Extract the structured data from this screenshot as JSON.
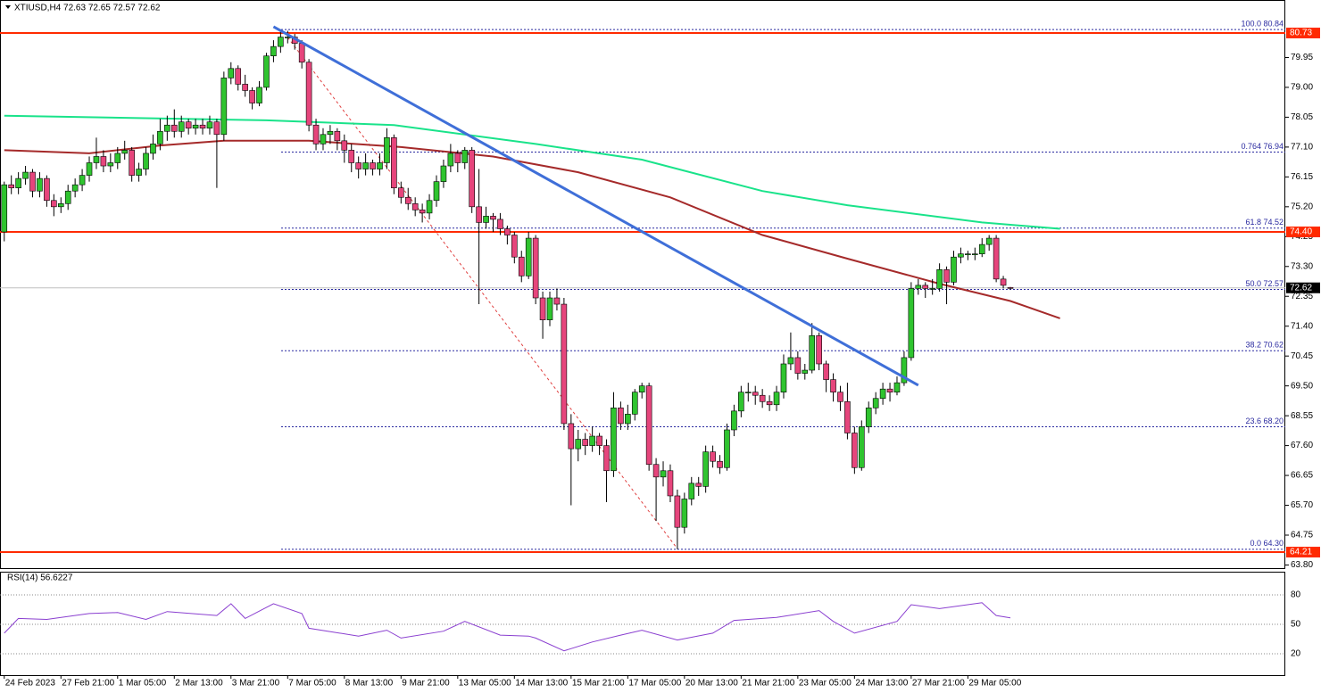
{
  "chart_data": {
    "type": "candlestick",
    "title": "XTIUSD,H4  72.63 72.65 72.57 72.62",
    "up_color": "#2fc42f",
    "down_color": "#e6457c",
    "ohlc": [
      [
        74.4,
        76.0,
        74.1,
        75.9
      ],
      [
        75.9,
        76.2,
        75.6,
        75.8
      ],
      [
        75.8,
        76.3,
        75.6,
        76.1
      ],
      [
        76.1,
        76.5,
        75.9,
        76.3
      ],
      [
        76.3,
        76.4,
        75.5,
        75.7
      ],
      [
        75.7,
        76.3,
        75.5,
        76.1
      ],
      [
        76.1,
        76.2,
        75.2,
        75.4
      ],
      [
        75.4,
        75.6,
        74.9,
        75.2
      ],
      [
        75.2,
        75.5,
        75.0,
        75.3
      ],
      [
        75.3,
        75.9,
        75.1,
        75.7
      ],
      [
        75.7,
        76.1,
        75.5,
        75.9
      ],
      [
        75.9,
        76.4,
        75.7,
        76.2
      ],
      [
        76.2,
        76.8,
        76.0,
        76.6
      ],
      [
        76.6,
        77.4,
        76.4,
        76.8
      ],
      [
        76.8,
        77.0,
        76.3,
        76.5
      ],
      [
        76.5,
        76.9,
        76.3,
        76.6
      ],
      [
        76.6,
        77.1,
        76.4,
        76.9
      ],
      [
        76.9,
        77.3,
        76.7,
        77.0
      ],
      [
        77.0,
        77.1,
        76.0,
        76.2
      ],
      [
        76.2,
        76.6,
        76.0,
        76.4
      ],
      [
        76.4,
        77.1,
        76.2,
        76.9
      ],
      [
        76.9,
        77.5,
        76.7,
        77.2
      ],
      [
        77.2,
        78.0,
        77.0,
        77.6
      ],
      [
        77.6,
        78.1,
        77.3,
        77.8
      ],
      [
        77.8,
        78.3,
        77.4,
        77.6
      ],
      [
        77.6,
        78.1,
        77.4,
        77.9
      ],
      [
        77.9,
        78.0,
        77.5,
        77.7
      ],
      [
        77.7,
        78.0,
        77.5,
        77.8
      ],
      [
        77.8,
        78.0,
        77.5,
        77.7
      ],
      [
        77.7,
        78.1,
        77.5,
        77.9
      ],
      [
        77.9,
        78.0,
        75.8,
        77.5
      ],
      [
        77.5,
        79.5,
        77.3,
        79.3
      ],
      [
        79.3,
        79.8,
        79.1,
        79.6
      ],
      [
        79.6,
        79.7,
        78.9,
        79.1
      ],
      [
        79.1,
        79.4,
        78.7,
        78.9
      ],
      [
        78.9,
        79.0,
        78.3,
        78.5
      ],
      [
        78.5,
        79.2,
        78.4,
        79.0
      ],
      [
        79.0,
        80.1,
        78.9,
        80.0
      ],
      [
        80.0,
        80.5,
        79.8,
        80.3
      ],
      [
        80.3,
        80.8,
        80.1,
        80.6
      ],
      [
        80.6,
        80.8,
        80.4,
        80.6
      ],
      [
        80.6,
        80.7,
        80.2,
        80.4
      ],
      [
        80.4,
        80.5,
        79.6,
        79.8
      ],
      [
        79.8,
        79.9,
        77.6,
        77.8
      ],
      [
        77.8,
        78.0,
        77.0,
        77.2
      ],
      [
        77.2,
        77.7,
        77.0,
        77.5
      ],
      [
        77.5,
        77.8,
        77.2,
        77.6
      ],
      [
        77.6,
        77.7,
        77.0,
        77.3
      ],
      [
        77.3,
        77.5,
        76.6,
        77.0
      ],
      [
        77.0,
        77.2,
        76.3,
        76.6
      ],
      [
        76.6,
        76.8,
        76.1,
        76.4
      ],
      [
        76.4,
        76.9,
        76.2,
        76.6
      ],
      [
        76.6,
        76.7,
        76.2,
        76.4
      ],
      [
        76.4,
        76.9,
        76.2,
        76.6
      ],
      [
        76.6,
        77.7,
        76.4,
        77.4
      ],
      [
        77.4,
        77.5,
        75.6,
        75.8
      ],
      [
        75.8,
        76.0,
        75.3,
        75.5
      ],
      [
        75.5,
        75.8,
        75.1,
        75.3
      ],
      [
        75.3,
        75.5,
        74.9,
        75.1
      ],
      [
        75.1,
        75.3,
        74.7,
        75.0
      ],
      [
        75.0,
        75.6,
        74.8,
        75.4
      ],
      [
        75.4,
        76.2,
        75.2,
        76.0
      ],
      [
        76.0,
        76.7,
        75.8,
        76.5
      ],
      [
        76.5,
        77.2,
        76.3,
        76.9
      ],
      [
        76.9,
        77.0,
        76.3,
        76.6
      ],
      [
        76.6,
        77.1,
        76.4,
        77.0
      ],
      [
        77.0,
        77.1,
        75.0,
        75.2
      ],
      [
        75.2,
        76.4,
        72.1,
        74.7
      ],
      [
        74.7,
        75.2,
        74.5,
        74.9
      ],
      [
        74.9,
        75.0,
        74.4,
        74.8
      ],
      [
        74.8,
        75.0,
        74.3,
        74.5
      ],
      [
        74.5,
        74.6,
        74.0,
        74.3
      ],
      [
        74.3,
        74.4,
        73.4,
        73.6
      ],
      [
        73.6,
        73.8,
        72.8,
        73.0
      ],
      [
        73.0,
        74.4,
        72.9,
        74.2
      ],
      [
        74.2,
        74.3,
        72.1,
        72.3
      ],
      [
        72.3,
        72.5,
        71.0,
        71.6
      ],
      [
        71.6,
        72.5,
        71.4,
        72.3
      ],
      [
        72.3,
        72.6,
        71.9,
        72.1
      ],
      [
        72.1,
        72.3,
        68.1,
        68.3
      ],
      [
        68.3,
        68.6,
        65.7,
        67.5
      ],
      [
        67.5,
        68.1,
        67.1,
        67.8
      ],
      [
        67.8,
        68.0,
        67.3,
        67.6
      ],
      [
        67.6,
        68.2,
        67.4,
        67.9
      ],
      [
        67.9,
        68.0,
        67.3,
        67.6
      ],
      [
        67.6,
        67.8,
        65.8,
        66.8
      ],
      [
        66.8,
        69.3,
        66.6,
        68.8
      ],
      [
        68.8,
        69.0,
        68.1,
        68.3
      ],
      [
        68.3,
        68.9,
        68.1,
        68.6
      ],
      [
        68.6,
        69.4,
        68.4,
        69.3
      ],
      [
        69.3,
        69.6,
        69.1,
        69.5
      ],
      [
        69.5,
        69.6,
        66.8,
        67.0
      ],
      [
        67.0,
        67.2,
        65.2,
        66.6
      ],
      [
        66.6,
        67.1,
        66.3,
        66.8
      ],
      [
        66.8,
        67.0,
        65.8,
        66.0
      ],
      [
        66.0,
        66.2,
        64.3,
        65.0
      ],
      [
        65.0,
        66.1,
        64.8,
        65.9
      ],
      [
        65.9,
        66.6,
        65.7,
        66.4
      ],
      [
        66.4,
        66.6,
        66.0,
        66.3
      ],
      [
        66.3,
        67.6,
        66.1,
        67.4
      ],
      [
        67.4,
        67.6,
        66.9,
        67.1
      ],
      [
        67.1,
        67.3,
        66.7,
        66.9
      ],
      [
        66.9,
        68.3,
        66.8,
        68.1
      ],
      [
        68.1,
        68.9,
        67.9,
        68.7
      ],
      [
        68.7,
        69.5,
        68.5,
        69.3
      ],
      [
        69.3,
        69.6,
        69.0,
        69.3
      ],
      [
        69.3,
        69.5,
        68.9,
        69.2
      ],
      [
        69.2,
        69.4,
        68.8,
        69.0
      ],
      [
        69.0,
        69.2,
        68.7,
        68.9
      ],
      [
        68.9,
        69.5,
        68.7,
        69.3
      ],
      [
        69.3,
        70.5,
        69.1,
        70.2
      ],
      [
        70.2,
        71.2,
        70.0,
        70.4
      ],
      [
        70.4,
        70.6,
        69.7,
        69.9
      ],
      [
        69.9,
        70.2,
        69.7,
        70.0
      ],
      [
        70.0,
        71.5,
        69.9,
        71.1
      ],
      [
        71.1,
        71.2,
        70.0,
        70.2
      ],
      [
        70.2,
        70.3,
        69.3,
        69.7
      ],
      [
        69.7,
        69.9,
        69.0,
        69.3
      ],
      [
        69.3,
        69.5,
        68.7,
        69.0
      ],
      [
        69.0,
        69.6,
        67.8,
        68.0
      ],
      [
        68.0,
        68.2,
        66.7,
        66.9
      ],
      [
        66.9,
        68.4,
        66.8,
        68.2
      ],
      [
        68.2,
        69.0,
        68.0,
        68.8
      ],
      [
        68.8,
        69.3,
        68.6,
        69.1
      ],
      [
        69.1,
        69.6,
        68.9,
        69.4
      ],
      [
        69.4,
        69.6,
        69.0,
        69.3
      ],
      [
        69.3,
        69.8,
        69.2,
        69.6
      ],
      [
        69.6,
        70.6,
        69.5,
        70.4
      ],
      [
        70.4,
        72.8,
        70.3,
        72.6
      ],
      [
        72.6,
        72.9,
        72.4,
        72.7
      ],
      [
        72.7,
        72.8,
        72.3,
        72.6
      ],
      [
        72.6,
        72.9,
        72.4,
        72.6
      ],
      [
        72.6,
        73.4,
        72.5,
        73.2
      ],
      [
        73.2,
        73.3,
        72.1,
        72.8
      ],
      [
        72.8,
        73.8,
        72.7,
        73.6
      ],
      [
        73.6,
        73.9,
        73.4,
        73.7
      ],
      [
        73.7,
        73.8,
        73.5,
        73.7
      ],
      [
        73.7,
        73.9,
        73.5,
        73.7
      ],
      [
        73.7,
        74.2,
        73.6,
        74.0
      ],
      [
        74.0,
        74.3,
        73.8,
        74.2
      ],
      [
        74.2,
        74.3,
        72.8,
        72.9
      ],
      [
        72.9,
        73.0,
        72.6,
        72.7
      ],
      [
        72.63,
        72.65,
        72.57,
        72.62
      ]
    ],
    "xlim": [
      -0.6,
      180.8
    ],
    "ylim": [
      63.7,
      81.78
    ],
    "yticks": [
      79.95,
      {
        "value": 79,
        "label": "79.00"
      },
      78.05,
      {
        "value": 77.1,
        "label": "77.10"
      },
      76.15,
      {
        "value": 75.2,
        "label": "75.20"
      },
      74.25,
      {
        "value": 73.3,
        "label": "73.30"
      },
      72.35,
      {
        "value": 71.4,
        "label": "71.40"
      },
      70.45,
      {
        "value": 69.5,
        "label": "69.50"
      },
      68.55,
      {
        "value": 67.6,
        "label": "67.60"
      },
      66.65,
      {
        "value": 65.7,
        "label": "65.70"
      },
      64.75,
      {
        "value": 63.8,
        "label": "63.80"
      }
    ],
    "xticks": [
      {
        "value": 0,
        "label": "24 Feb 2023"
      },
      {
        "value": 8,
        "label": "27 Feb 21:00"
      },
      {
        "value": 16,
        "label": "1 Mar 05:00"
      },
      {
        "value": 24,
        "label": "2 Mar 13:00"
      },
      {
        "value": 32,
        "label": "3 Mar 21:00"
      },
      {
        "value": 40,
        "label": "7 Mar 05:00"
      },
      {
        "value": 48,
        "label": "8 Mar 13:00"
      },
      {
        "value": 56,
        "label": "9 Mar 21:00"
      },
      {
        "value": 64,
        "label": "13 Mar 05:00"
      },
      {
        "value": 72,
        "label": "14 Mar 13:00"
      },
      {
        "value": 80,
        "label": "15 Mar 21:00"
      },
      {
        "value": 88,
        "label": "17 Mar 05:00"
      },
      {
        "value": 96,
        "label": "20 Mar 13:00"
      },
      {
        "value": 104,
        "label": "21 Mar 21:00"
      },
      {
        "value": 112,
        "label": "23 Mar 05:00"
      },
      {
        "value": 120,
        "label": "24 Mar 13:00"
      },
      {
        "value": 128,
        "label": "27 Mar 21:00"
      },
      {
        "value": 136,
        "label": "29 Mar 05:00"
      }
    ],
    "moving_averages": [
      {
        "color": "#19e38a",
        "x": [
          0,
          37,
          55,
          75,
          90,
          107,
          119,
          138,
          149
        ],
        "values": [
          78.1,
          77.95,
          77.8,
          77.2,
          76.7,
          75.7,
          75.25,
          74.7,
          74.5
        ]
      },
      {
        "color": "#a52a2a",
        "x": [
          0,
          12,
          22,
          31,
          43,
          56,
          69,
          81,
          94,
          107,
          119,
          132,
          142,
          149
        ],
        "values": [
          77.0,
          76.9,
          77.15,
          77.3,
          77.3,
          77.1,
          76.8,
          76.3,
          75.5,
          74.3,
          73.55,
          72.75,
          72.2,
          71.65
        ]
      }
    ],
    "trendline": {
      "color": "#3f6fd8",
      "x": [
        38,
        129
      ],
      "values": [
        80.93,
        69.52
      ]
    },
    "fib_line": {
      "color": "#e04040",
      "x": [
        40,
        95
      ],
      "values": [
        80.59,
        64.32
      ]
    },
    "fib_levels": [
      {
        "value": 80.84,
        "label": "100.0 80.84"
      },
      {
        "value": 76.94,
        "label": "0.764 76.94"
      },
      {
        "value": 74.52,
        "label": "61.8 74.52"
      },
      {
        "value": 72.57,
        "label": "50.0 72.57"
      },
      {
        "value": 70.62,
        "label": "38.2 70.62"
      },
      {
        "value": 68.2,
        "label": "23.6 68.20"
      },
      {
        "value": 64.3,
        "label": "0.0 64.30"
      }
    ],
    "levels": [
      80.73,
      {
        "value": 74.4,
        "label": "74.40"
      },
      64.21
    ],
    "level_color": "#ff2a00",
    "current": 72.62,
    "rsi": {
      "title": "RSI(14) 56.6227",
      "color": "#8a3fd0",
      "ylim": [
        0,
        100
      ],
      "yticks": [
        80,
        50,
        20
      ],
      "x": [
        0,
        2,
        6,
        12,
        16,
        20,
        23,
        30,
        32,
        34,
        38,
        42,
        43,
        50,
        54,
        56,
        62,
        65,
        70,
        74,
        75,
        79,
        83,
        87,
        90,
        95,
        100,
        103,
        109,
        115,
        117,
        120,
        126,
        128,
        132,
        138,
        140,
        142
      ],
      "values": [
        41,
        56,
        55,
        61,
        62,
        55,
        63,
        59,
        71,
        56,
        71,
        61,
        46,
        38,
        44,
        36,
        43,
        53,
        39,
        38,
        36,
        23,
        32,
        39,
        44,
        34,
        41,
        54,
        57,
        64,
        53,
        41,
        53,
        70,
        66,
        72,
        59,
        56.6227
      ]
    }
  }
}
